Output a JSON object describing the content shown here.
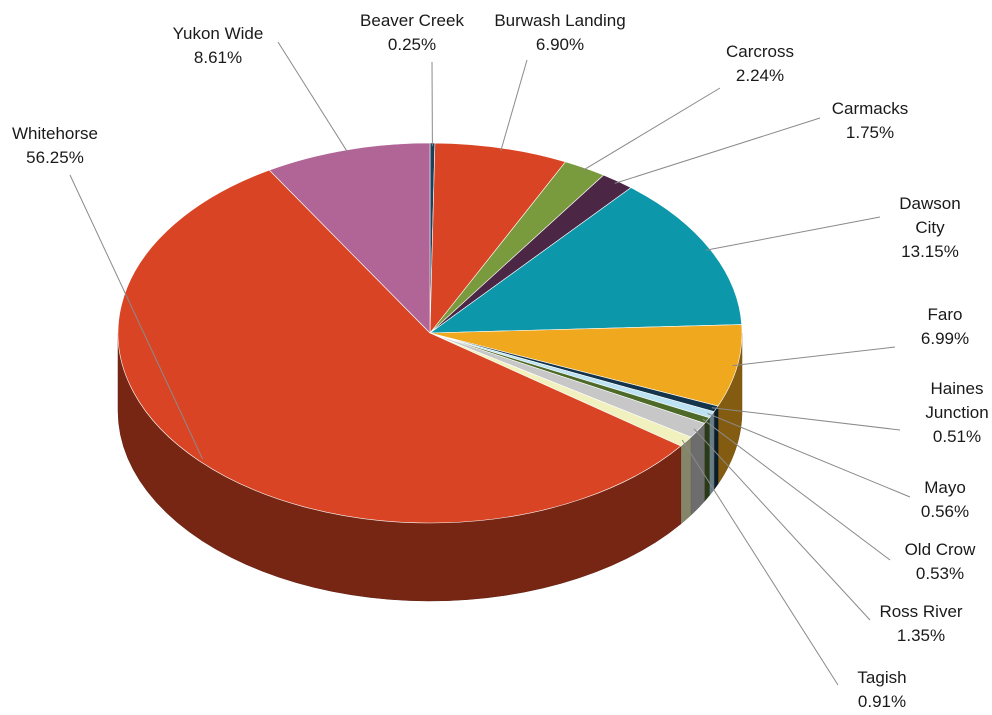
{
  "chart_data": {
    "type": "pie",
    "title": "",
    "legend": "none",
    "slices": [
      {
        "label": "Beaver Creek",
        "label_lines": [
          "Beaver Creek"
        ],
        "value_text": "0.25%",
        "value": 0.25,
        "color": "#1c3f5a"
      },
      {
        "label": "Burwash Landing",
        "label_lines": [
          "Burwash Landing"
        ],
        "value_text": "6.90%",
        "value": 6.9,
        "color": "#d94524"
      },
      {
        "label": "Carcross",
        "label_lines": [
          "Carcross"
        ],
        "value_text": "2.24%",
        "value": 2.24,
        "color": "#7a9a3e"
      },
      {
        "label": "Carmacks",
        "label_lines": [
          "Carmacks"
        ],
        "value_text": "1.75%",
        "value": 1.75,
        "color": "#4b2645"
      },
      {
        "label": "Dawson City",
        "label_lines": [
          "Dawson",
          "City"
        ],
        "value_text": "13.15%",
        "value": 13.15,
        "color": "#0d97aa"
      },
      {
        "label": "Faro",
        "label_lines": [
          "Faro"
        ],
        "value_text": "6.99%",
        "value": 6.99,
        "color": "#f0a81e"
      },
      {
        "label": "Haines Junction",
        "label_lines": [
          "Haines",
          "Junction"
        ],
        "value_text": "0.51%",
        "value": 0.51,
        "color": "#13344b"
      },
      {
        "label": "Mayo",
        "label_lines": [
          "Mayo"
        ],
        "value_text": "0.56%",
        "value": 0.56,
        "color": "#bde3f2"
      },
      {
        "label": "Old Crow",
        "label_lines": [
          "Old Crow"
        ],
        "value_text": "0.53%",
        "value": 0.53,
        "color": "#4d6a28"
      },
      {
        "label": "Ross River",
        "label_lines": [
          "Ross River"
        ],
        "value_text": "1.35%",
        "value": 1.35,
        "color": "#c7c7c7"
      },
      {
        "label": "Tagish",
        "label_lines": [
          "Tagish"
        ],
        "value_text": "0.91%",
        "value": 0.91,
        "color": "#f1f1bf"
      },
      {
        "label": "Whitehorse",
        "label_lines": [
          "Whitehorse"
        ],
        "value_text": "56.25%",
        "value": 56.25,
        "color": "#d94524"
      },
      {
        "label": "Yukon Wide",
        "label_lines": [
          "Yukon Wide"
        ],
        "value_text": "8.61%",
        "value": 8.61,
        "color": "#b06596"
      }
    ]
  }
}
